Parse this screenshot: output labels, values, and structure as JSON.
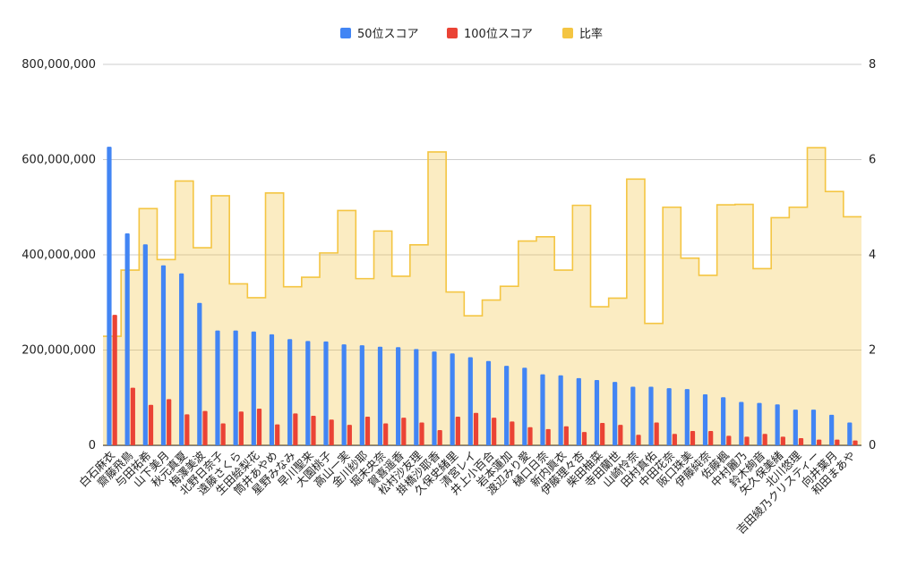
{
  "chart_data": {
    "type": "bar",
    "categories": [
      "白石麻衣",
      "齋藤飛鳥",
      "与田祐希",
      "山下美月",
      "秋元真夏",
      "梅澤美波",
      "北野日奈子",
      "遠藤さくら",
      "生田絵梨花",
      "筒井あやめ",
      "星野みなみ",
      "早川聖来",
      "大園桃子",
      "高山一実",
      "金川紗耶",
      "堀未央奈",
      "賀喜遥香",
      "松村沙友理",
      "掛橋沙耶香",
      "久保史緒里",
      "清宮レイ",
      "井上小百合",
      "岩本蓮加",
      "渡辺みり愛",
      "樋口日奈",
      "新内眞衣",
      "伊藤理々杏",
      "柴田柚菜",
      "寺田蘭世",
      "山崎怜奈",
      "田村真佑",
      "中田花奈",
      "阪口珠美",
      "伊藤純奈",
      "佐藤楓",
      "中村麗乃",
      "鈴木絢音",
      "矢久保美緒",
      "北川悠理",
      "吉田綾乃クリスティー",
      "向井葉月",
      "和田まあや"
    ],
    "series": [
      {
        "name": "50位スコア",
        "color": "#4285f4",
        "axis": "left",
        "values": [
          627000000,
          445000000,
          422000000,
          378000000,
          361000000,
          299000000,
          241000000,
          241000000,
          239000000,
          233000000,
          223000000,
          219000000,
          218000000,
          212000000,
          210000000,
          207000000,
          206000000,
          202000000,
          197000000,
          193000000,
          185000000,
          177000000,
          167000000,
          163000000,
          149000000,
          147000000,
          141000000,
          137000000,
          133000000,
          123000000,
          123000000,
          120000000,
          118000000,
          107000000,
          101000000,
          91000000,
          89000000,
          86000000,
          75000000,
          75000000,
          64000000,
          48000000
        ]
      },
      {
        "name": "100位スコア",
        "color": "#ea4335",
        "axis": "left",
        "values": [
          274000000,
          121000000,
          85000000,
          97000000,
          65000000,
          72000000,
          46000000,
          71000000,
          77000000,
          44000000,
          67000000,
          62000000,
          54000000,
          43000000,
          60000000,
          46000000,
          58000000,
          48000000,
          32000000,
          60000000,
          68000000,
          58000000,
          50000000,
          38000000,
          34000000,
          40000000,
          28000000,
          47000000,
          43000000,
          22000000,
          48000000,
          24000000,
          30000000,
          30000000,
          20000000,
          18000000,
          24000000,
          18000000,
          15000000,
          12000000,
          12000000,
          10000000
        ]
      },
      {
        "name": "比率",
        "color": "#f4c542",
        "axis": "right",
        "values": [
          2.29,
          3.68,
          4.97,
          3.9,
          5.55,
          4.15,
          5.24,
          3.39,
          3.1,
          5.3,
          3.33,
          3.53,
          4.04,
          4.93,
          3.5,
          4.5,
          3.55,
          4.21,
          6.16,
          3.22,
          2.72,
          3.05,
          3.34,
          4.29,
          4.38,
          3.68,
          5.04,
          2.91,
          3.09,
          5.59,
          2.56,
          5.0,
          3.93,
          3.57,
          5.05,
          5.06,
          3.71,
          4.78,
          5.0,
          6.25,
          5.33,
          4.8
        ]
      }
    ],
    "ylim_left": [
      0,
      800000000
    ],
    "yticks_left": [
      "0",
      "200,000,000",
      "400,000,000",
      "600,000,000",
      "800,000,000"
    ],
    "ylim_right": [
      0,
      8
    ],
    "yticks_right": [
      "0",
      "2",
      "4",
      "6",
      "8"
    ],
    "grid": true,
    "legend_position": "top"
  }
}
